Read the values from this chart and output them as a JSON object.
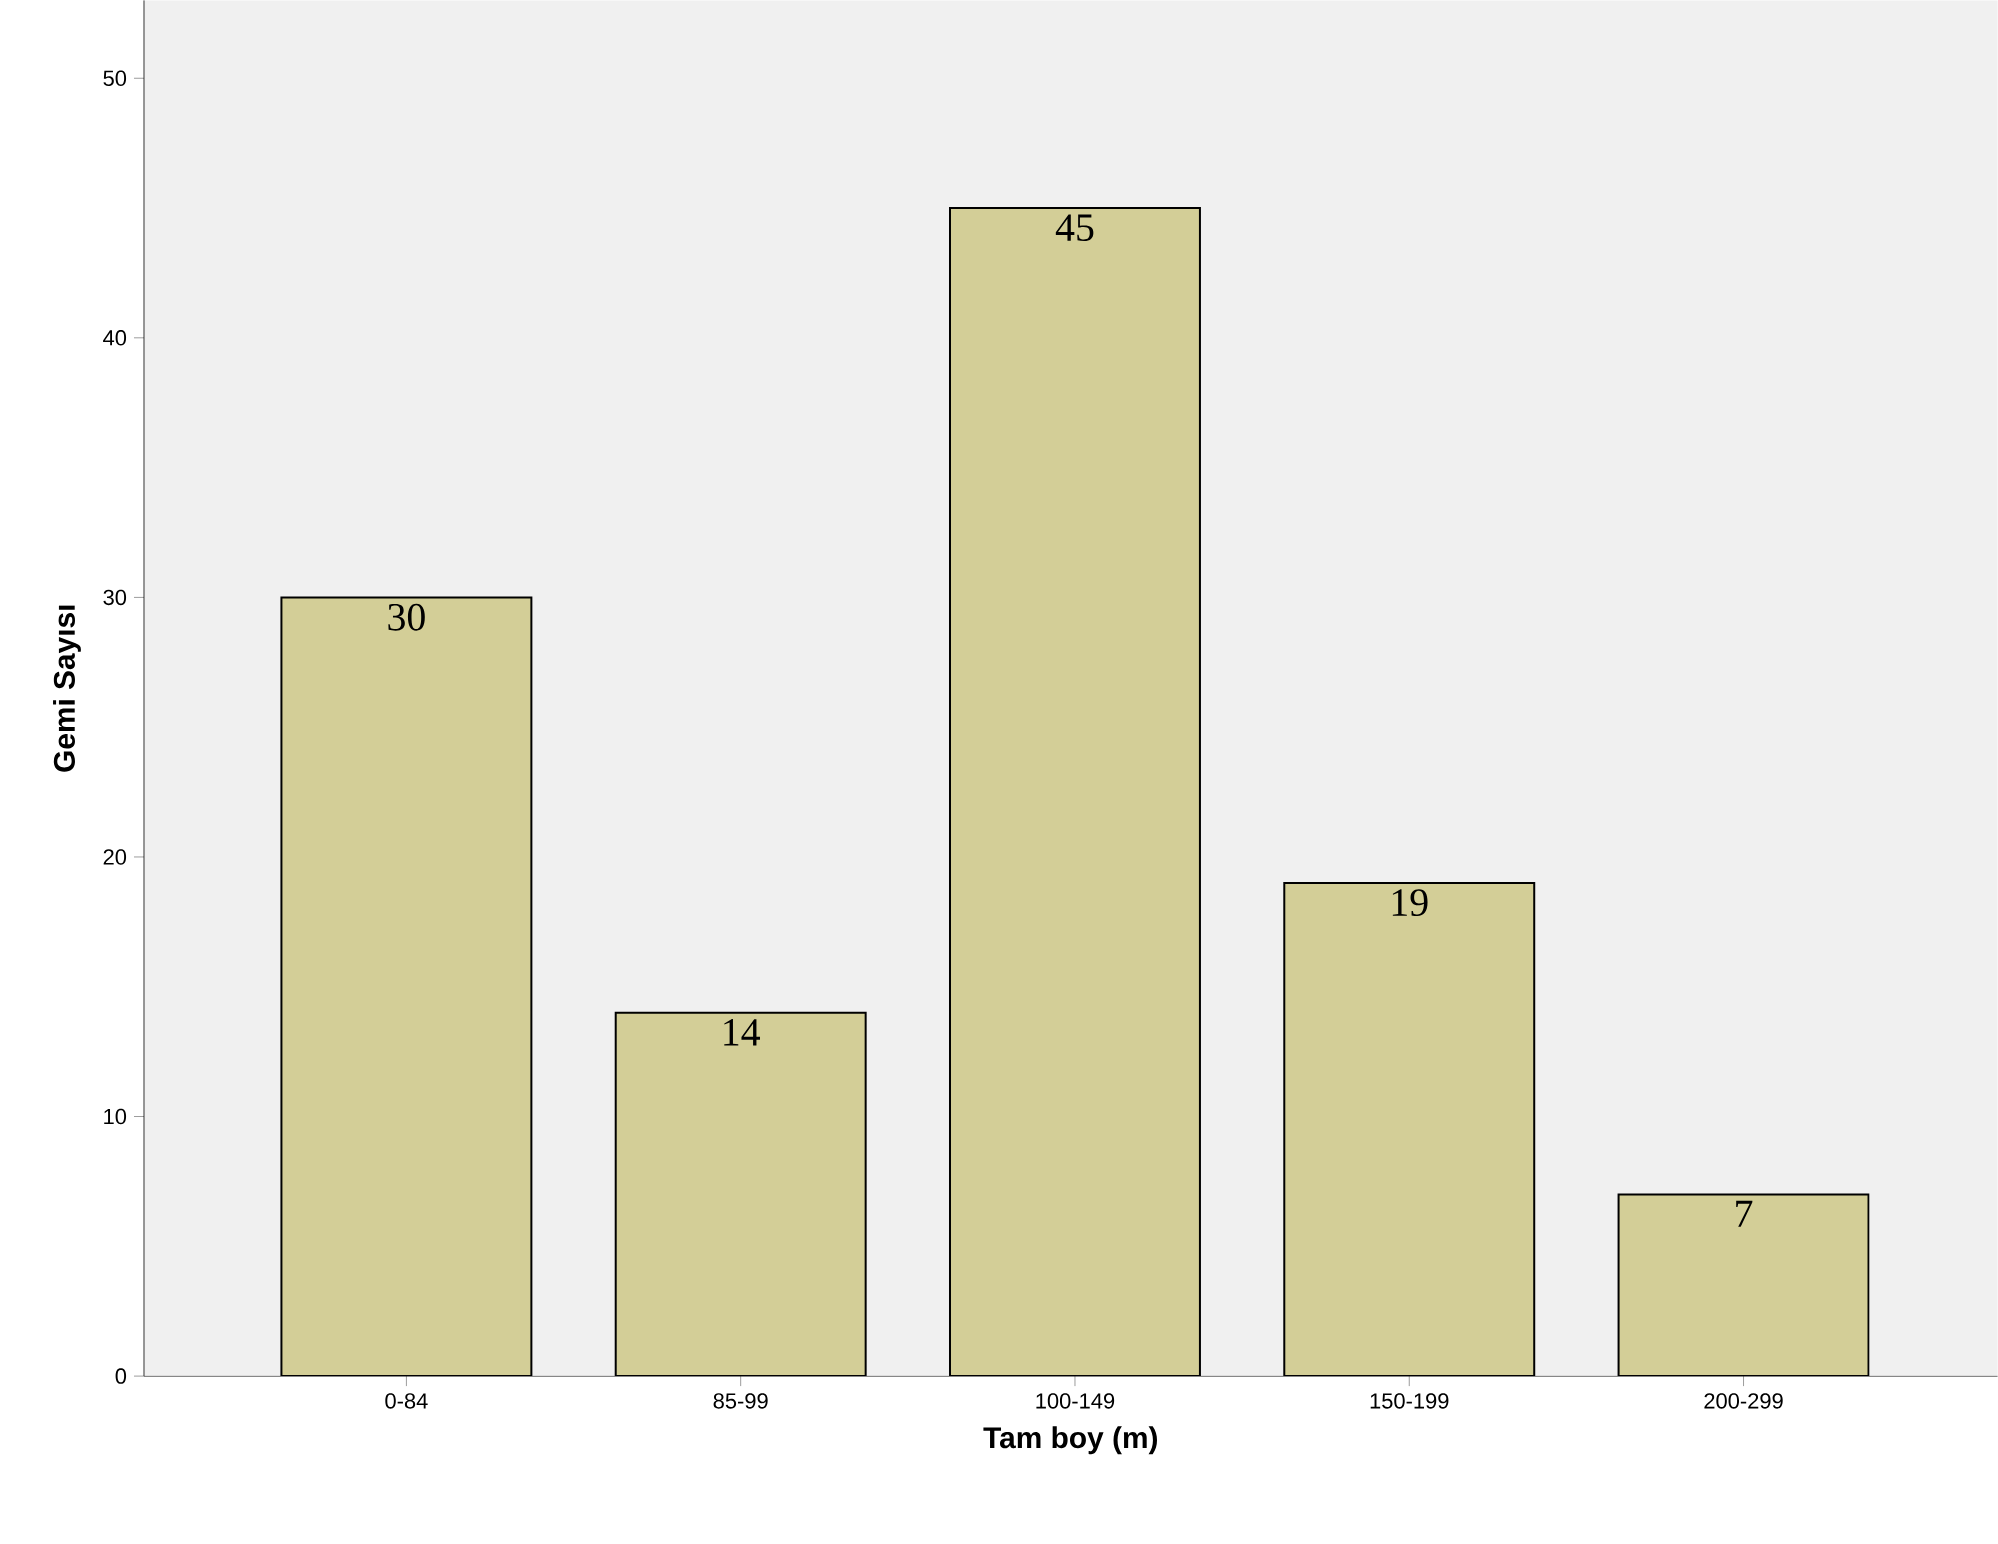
{
  "chart_data": {
    "type": "bar",
    "xlabel": "Tam boy (m)",
    "ylabel": "Gemi Sayısı",
    "categories": [
      "0-84",
      "85-99",
      "100-149",
      "150-199",
      "200-299"
    ],
    "values": [
      30,
      14,
      45,
      19,
      7
    ],
    "color": "#d3ce97",
    "ylim": [
      0,
      53
    ],
    "yticks": [
      0,
      10,
      20,
      30,
      40,
      50
    ],
    "data_labels": true
  }
}
